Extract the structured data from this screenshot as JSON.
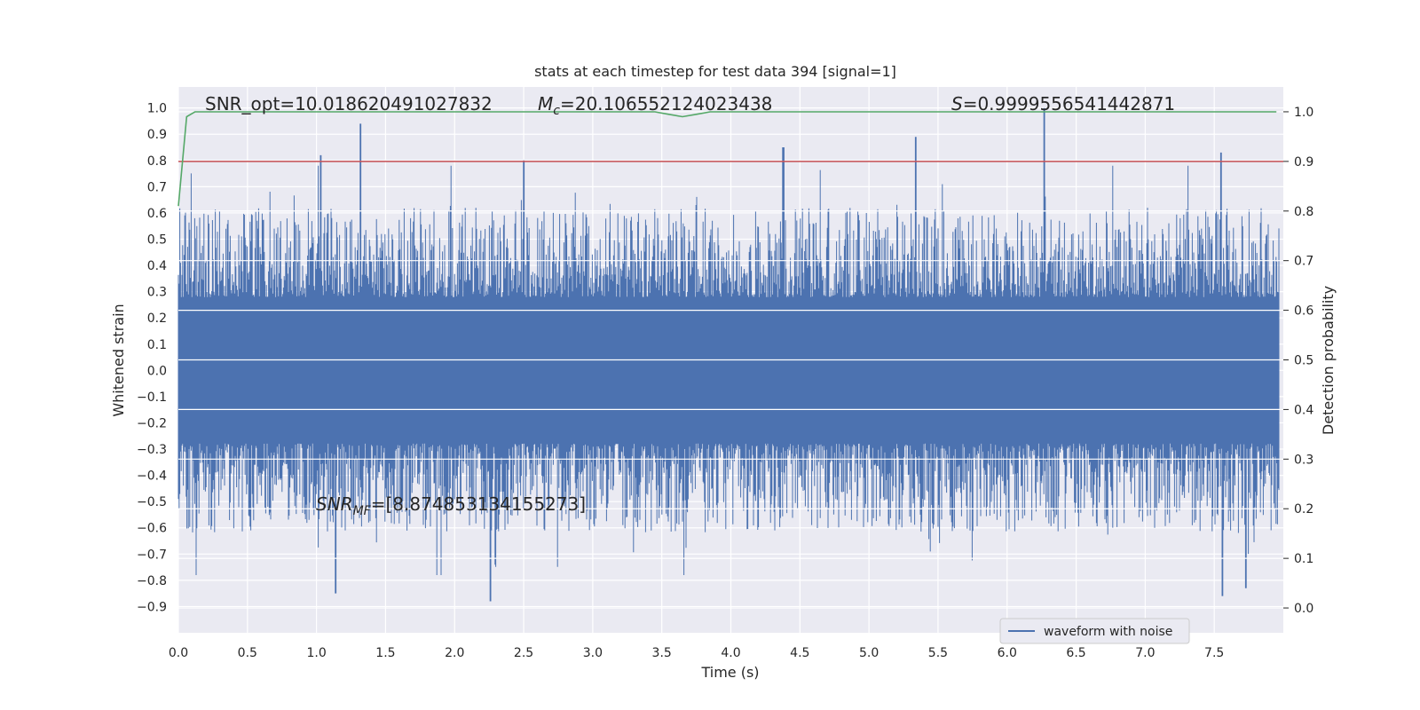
{
  "chart_data": {
    "type": "line",
    "title": "stats at each timestep for test data 394 [signal=1]",
    "xlabel": "Time (s)",
    "ylabel": "Whitened strain",
    "ylabel_right": "Detection probability",
    "xlim": [
      0.0,
      8.0
    ],
    "ylim": [
      -1.0,
      1.08
    ],
    "ylim_right": [
      -0.05,
      1.05
    ],
    "xticks": [
      0.0,
      0.5,
      1.0,
      1.5,
      2.0,
      2.5,
      3.0,
      3.5,
      4.0,
      4.5,
      5.0,
      5.5,
      6.0,
      6.5,
      7.0,
      7.5
    ],
    "xtick_labels": [
      "0.0",
      "0.5",
      "1.0",
      "1.5",
      "2.0",
      "2.5",
      "3.0",
      "3.5",
      "4.0",
      "4.5",
      "5.0",
      "5.5",
      "6.0",
      "6.5",
      "7.0",
      "7.5"
    ],
    "yticks": [
      -0.9,
      -0.8,
      -0.7,
      -0.6,
      -0.5,
      -0.4,
      -0.3,
      -0.2,
      -0.1,
      0.0,
      0.1,
      0.2,
      0.3,
      0.4,
      0.5,
      0.6,
      0.7,
      0.8,
      0.9,
      1.0
    ],
    "ytick_labels": [
      "−0.9",
      "−0.8",
      "−0.7",
      "−0.6",
      "−0.5",
      "−0.4",
      "−0.3",
      "−0.2",
      "−0.1",
      "0.0",
      "0.1",
      "0.2",
      "0.3",
      "0.4",
      "0.5",
      "0.6",
      "0.7",
      "0.8",
      "0.9",
      "1.0"
    ],
    "yticks_right": [
      0.0,
      0.1,
      0.2,
      0.3,
      0.4,
      0.5,
      0.6,
      0.7,
      0.8,
      0.9,
      1.0
    ],
    "ytick_labels_right": [
      "0.0",
      "0.1",
      "0.2",
      "0.3",
      "0.4",
      "0.5",
      "0.6",
      "0.7",
      "0.8",
      "0.9",
      "1.0"
    ],
    "grid": true,
    "legend_position": "lower-right",
    "series": [
      {
        "name": "waveform with noise",
        "color": "#4c72b0",
        "noise_amplitude": 0.62,
        "peaks": [
          {
            "x": 1.32,
            "y": 0.94
          },
          {
            "x": 1.03,
            "y": 0.82
          },
          {
            "x": 2.5,
            "y": 0.8
          },
          {
            "x": 4.38,
            "y": 0.85
          },
          {
            "x": 5.34,
            "y": 0.89
          },
          {
            "x": 6.27,
            "y": 1.0
          },
          {
            "x": 7.55,
            "y": 0.83
          },
          {
            "x": 1.14,
            "y": -0.85
          },
          {
            "x": 2.26,
            "y": -0.88
          },
          {
            "x": 7.56,
            "y": -0.86
          },
          {
            "x": 7.73,
            "y": -0.83
          }
        ]
      },
      {
        "name": "",
        "axis": "right",
        "color": "#55a868",
        "x": [
          0.0,
          0.06,
          0.12,
          0.5,
          1.0,
          2.0,
          3.0,
          3.45,
          3.55,
          3.65,
          3.75,
          3.85,
          4.0,
          5.0,
          6.0,
          7.0,
          7.95
        ],
        "y": [
          0.81,
          0.99,
          1.0,
          1.0,
          1.0,
          1.0,
          1.0,
          1.0,
          0.995,
          0.99,
          0.995,
          1.0,
          1.0,
          1.0,
          1.0,
          1.0,
          1.0
        ]
      }
    ],
    "threshold": {
      "axis": "right",
      "y": 0.9,
      "color": "#c44e52"
    },
    "annotations": {
      "snr_opt": "SNR_opt=10.018620491027832",
      "mc_symbol": "M",
      "mc_sub": "c",
      "mc_value": "=20.106552124023438",
      "s_symbol": "S",
      "s_value": "=0.9999556541442871",
      "snr_mf_symbol": "SNR",
      "snr_mf_sub": "MF",
      "snr_mf_value": "=[8.874853134155273]"
    }
  }
}
